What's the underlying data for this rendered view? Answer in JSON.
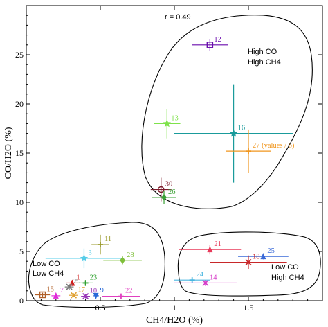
{
  "chart_data": {
    "type": "scatter",
    "xlabel": "CH4/H2O (%)",
    "ylabel": "CO/H2O (%)",
    "xlim": [
      0,
      2.0
    ],
    "ylim": [
      0,
      30
    ],
    "x_ticks": [
      "0.5",
      "1",
      "1.5"
    ],
    "y_ticks": [
      "0",
      "5",
      "10",
      "15",
      "20",
      "25"
    ],
    "annotation_r": "r = 0.49",
    "groups": [
      {
        "label_lines": [
          "High CO",
          "High CH4"
        ]
      },
      {
        "label_lines": [
          "Low CO",
          "Low CH4"
        ]
      },
      {
        "label_lines": [
          "Low CO",
          "High CH4"
        ]
      }
    ],
    "points": [
      {
        "label": "12",
        "x": 1.24,
        "y": 26.0,
        "xerr": 0.12,
        "yerr": 0.6,
        "color": "#6a0dad",
        "marker": "square"
      },
      {
        "label": "13",
        "x": 0.95,
        "y": 18.0,
        "xerr": 0.09,
        "yerr": 1.5,
        "color": "#7ee24a",
        "marker": "star"
      },
      {
        "label": "16",
        "x": 1.4,
        "y": 17.0,
        "xerr": 0.4,
        "yerr": 5.0,
        "color": "#1a9b9b",
        "marker": "star"
      },
      {
        "label": "27 (values / 6)",
        "x": 1.5,
        "y": 15.2,
        "xerr": 0.15,
        "yerr": 2.2,
        "color": "#f0961e",
        "marker": "plus"
      },
      {
        "label": "30",
        "x": 0.91,
        "y": 11.3,
        "xerr": 0.07,
        "yerr": 1.2,
        "color": "#7b1a2a",
        "marker": "circle"
      },
      {
        "label": "26",
        "x": 0.93,
        "y": 10.5,
        "xerr": 0.08,
        "yerr": 0.7,
        "color": "#3aa135",
        "marker": "diamond"
      },
      {
        "label": "11",
        "x": 0.5,
        "y": 5.7,
        "xerr": 0.06,
        "yerr": 1.0,
        "color": "#9a9a2a",
        "marker": "plus"
      },
      {
        "label": "3",
        "x": 0.39,
        "y": 4.3,
        "xerr": 0.26,
        "yerr": 1.0,
        "color": "#55cce8",
        "marker": "star"
      },
      {
        "label": "28",
        "x": 0.65,
        "y": 4.1,
        "xerr": 0.13,
        "yerr": 0.4,
        "color": "#7fbf3a",
        "marker": "diamond"
      },
      {
        "label": "21",
        "x": 1.24,
        "y": 5.2,
        "xerr": 0.21,
        "yerr": 0.5,
        "color": "#e83a5a",
        "marker": "triangle"
      },
      {
        "label": "25",
        "x": 1.6,
        "y": 4.5,
        "xerr": 0.17,
        "yerr": 0.3,
        "color": "#3a6ad8",
        "marker": "triangle"
      },
      {
        "label": "18",
        "x": 1.5,
        "y": 3.9,
        "xerr": 0.26,
        "yerr": 0.7,
        "color": "#c8282a",
        "marker": "x"
      },
      {
        "label": "24",
        "x": 1.12,
        "y": 2.1,
        "xerr": 0.12,
        "yerr": 0.2,
        "color": "#4ab6e0",
        "marker": "plus"
      },
      {
        "label": "14",
        "x": 1.21,
        "y": 1.8,
        "xerr": 0.21,
        "yerr": 0.3,
        "color": "#d63ac8",
        "marker": "x"
      },
      {
        "label": "1",
        "x": 0.31,
        "y": 1.8,
        "xerr": 0.04,
        "yerr": 0.3,
        "color": "#d11c1c",
        "marker": "triangle"
      },
      {
        "label": "23",
        "x": 0.4,
        "y": 1.8,
        "xerr": 0.05,
        "yerr": 0.3,
        "color": "#2ea12e",
        "marker": "plus"
      },
      {
        "label": "29",
        "x": 0.29,
        "y": 1.4,
        "xerr": 0.03,
        "yerr": 0.3,
        "color": "#777777",
        "marker": "x"
      },
      {
        "label": "15",
        "x": 0.11,
        "y": 0.6,
        "xerr": 0.05,
        "yerr": 0.2,
        "color": "#b0602a",
        "marker": "square"
      },
      {
        "label": "7",
        "x": 0.2,
        "y": 0.5,
        "xerr": 0.03,
        "yerr": 0.2,
        "color": "#e02ad8",
        "marker": "triangle"
      },
      {
        "label": "17",
        "x": 0.32,
        "y": 0.55,
        "xerr": 0.03,
        "yerr": 0.2,
        "color": "#e0a030",
        "marker": "x"
      },
      {
        "label": "10",
        "x": 0.4,
        "y": 0.45,
        "xerr": 0.03,
        "yerr": 0.2,
        "color": "#9b3ab8",
        "marker": "x"
      },
      {
        "label": "9",
        "x": 0.47,
        "y": 0.5,
        "xerr": 0.02,
        "yerr": 0.2,
        "color": "#2a6ad8",
        "marker": "triangle-down"
      },
      {
        "label": "22",
        "x": 0.64,
        "y": 0.45,
        "xerr": 0.13,
        "yerr": 0.15,
        "color": "#e040c0",
        "marker": "plus"
      }
    ]
  }
}
